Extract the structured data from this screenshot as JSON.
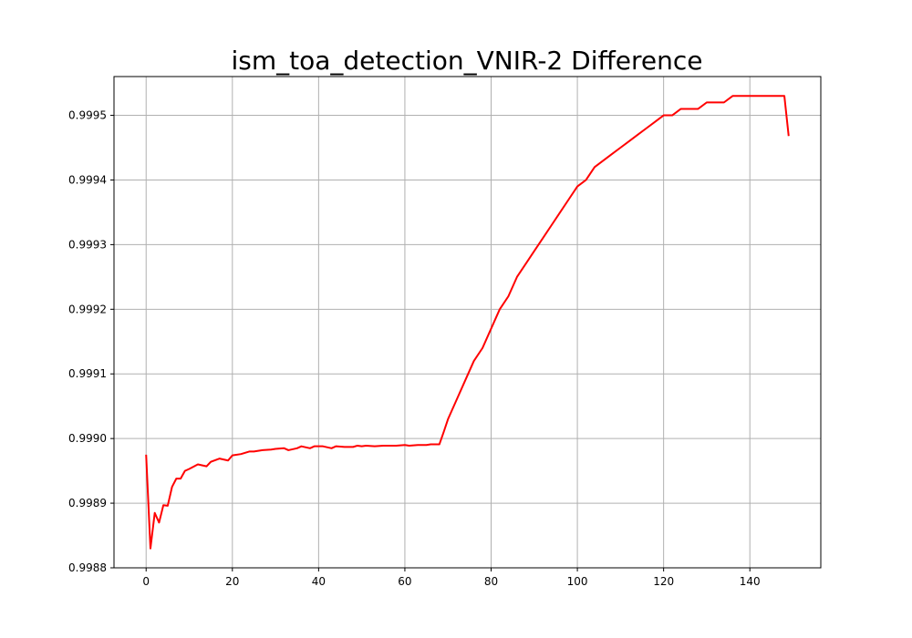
{
  "chart_data": {
    "type": "line",
    "title": "ism_toa_detection_VNIR-2 Difference",
    "xlabel": "",
    "ylabel": "",
    "xlim": [
      -7.45,
      156.45
    ],
    "ylim": [
      0.9988,
      0.99956
    ],
    "grid": true,
    "x_ticks": [
      0,
      20,
      40,
      60,
      80,
      100,
      120,
      140
    ],
    "x_tick_labels": [
      "0",
      "20",
      "40",
      "60",
      "80",
      "100",
      "120",
      "140"
    ],
    "y_ticks": [
      0.9988,
      0.9989,
      0.999,
      0.9991,
      0.9992,
      0.9993,
      0.9994,
      0.9995
    ],
    "y_tick_labels": [
      "0.9988",
      "0.9989",
      "0.9990",
      "0.9991",
      "0.9992",
      "0.9993",
      "0.9994",
      "0.9995"
    ],
    "series": [
      {
        "color": "#ff0000",
        "x": [
          0,
          1,
          2,
          3,
          4,
          5,
          6,
          7,
          8,
          9,
          10,
          12,
          14,
          15,
          17,
          19,
          20,
          22,
          24,
          25,
          27,
          29,
          30,
          32,
          33,
          35,
          36,
          38,
          39,
          41,
          43,
          44,
          46,
          48,
          49,
          50,
          51,
          53,
          55,
          56,
          58,
          60,
          61,
          63,
          65,
          66,
          68,
          69,
          70,
          72,
          74,
          76,
          78,
          80,
          82,
          84,
          86,
          88,
          90,
          92,
          94,
          96,
          98,
          100,
          102,
          104,
          106,
          108,
          110,
          112,
          114,
          116,
          118,
          120,
          122,
          124,
          126,
          128,
          130,
          132,
          134,
          136,
          138,
          140,
          142,
          144,
          146,
          147,
          148,
          149
        ],
        "y": [
          0.998975,
          0.99883,
          0.998885,
          0.99887,
          0.998897,
          0.998896,
          0.998925,
          0.998938,
          0.998938,
          0.99895,
          0.998953,
          0.99896,
          0.998957,
          0.998964,
          0.998969,
          0.998966,
          0.998974,
          0.998976,
          0.99898,
          0.99898,
          0.998982,
          0.998983,
          0.998984,
          0.998985,
          0.998982,
          0.998985,
          0.998988,
          0.998985,
          0.998988,
          0.998988,
          0.998985,
          0.998988,
          0.998987,
          0.998987,
          0.998989,
          0.998988,
          0.998989,
          0.998988,
          0.998989,
          0.998989,
          0.998989,
          0.99899,
          0.998989,
          0.99899,
          0.99899,
          0.998991,
          0.998991,
          0.99901,
          0.99903,
          0.99906,
          0.99909,
          0.99912,
          0.99914,
          0.99917,
          0.9992,
          0.99922,
          0.99925,
          0.99927,
          0.99929,
          0.99931,
          0.99933,
          0.99935,
          0.99937,
          0.99939,
          0.9994,
          0.99942,
          0.99943,
          0.99944,
          0.99945,
          0.99946,
          0.99947,
          0.99948,
          0.99949,
          0.9995,
          0.9995,
          0.99951,
          0.99951,
          0.99951,
          0.99952,
          0.99952,
          0.99952,
          0.99953,
          0.99953,
          0.99953,
          0.99953,
          0.99953,
          0.99953,
          0.99953,
          0.99953,
          0.999468
        ]
      }
    ]
  }
}
